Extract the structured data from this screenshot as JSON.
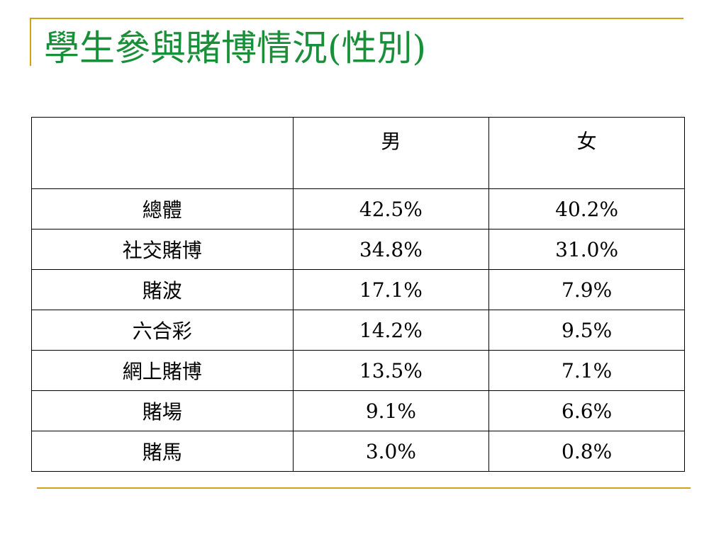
{
  "slide": {
    "title": "學生參與賭博情況(性別)",
    "accent_color": "#d4a017",
    "title_color": "#1a8f3a"
  },
  "table": {
    "headers": [
      "",
      "男",
      "女"
    ],
    "rows": [
      {
        "label": "總體",
        "male": "42.5%",
        "female": "40.2%"
      },
      {
        "label": "社交賭博",
        "male": "34.8%",
        "female": "31.0%"
      },
      {
        "label": "賭波",
        "male": "17.1%",
        "female": "7.9%"
      },
      {
        "label": "六合彩",
        "male": "14.2%",
        "female": "9.5%"
      },
      {
        "label": "網上賭博",
        "male": "13.5%",
        "female": "7.1%"
      },
      {
        "label": "賭場",
        "male": "9.1%",
        "female": "6.6%"
      },
      {
        "label": "賭馬",
        "male": "3.0%",
        "female": "0.8%"
      }
    ]
  }
}
